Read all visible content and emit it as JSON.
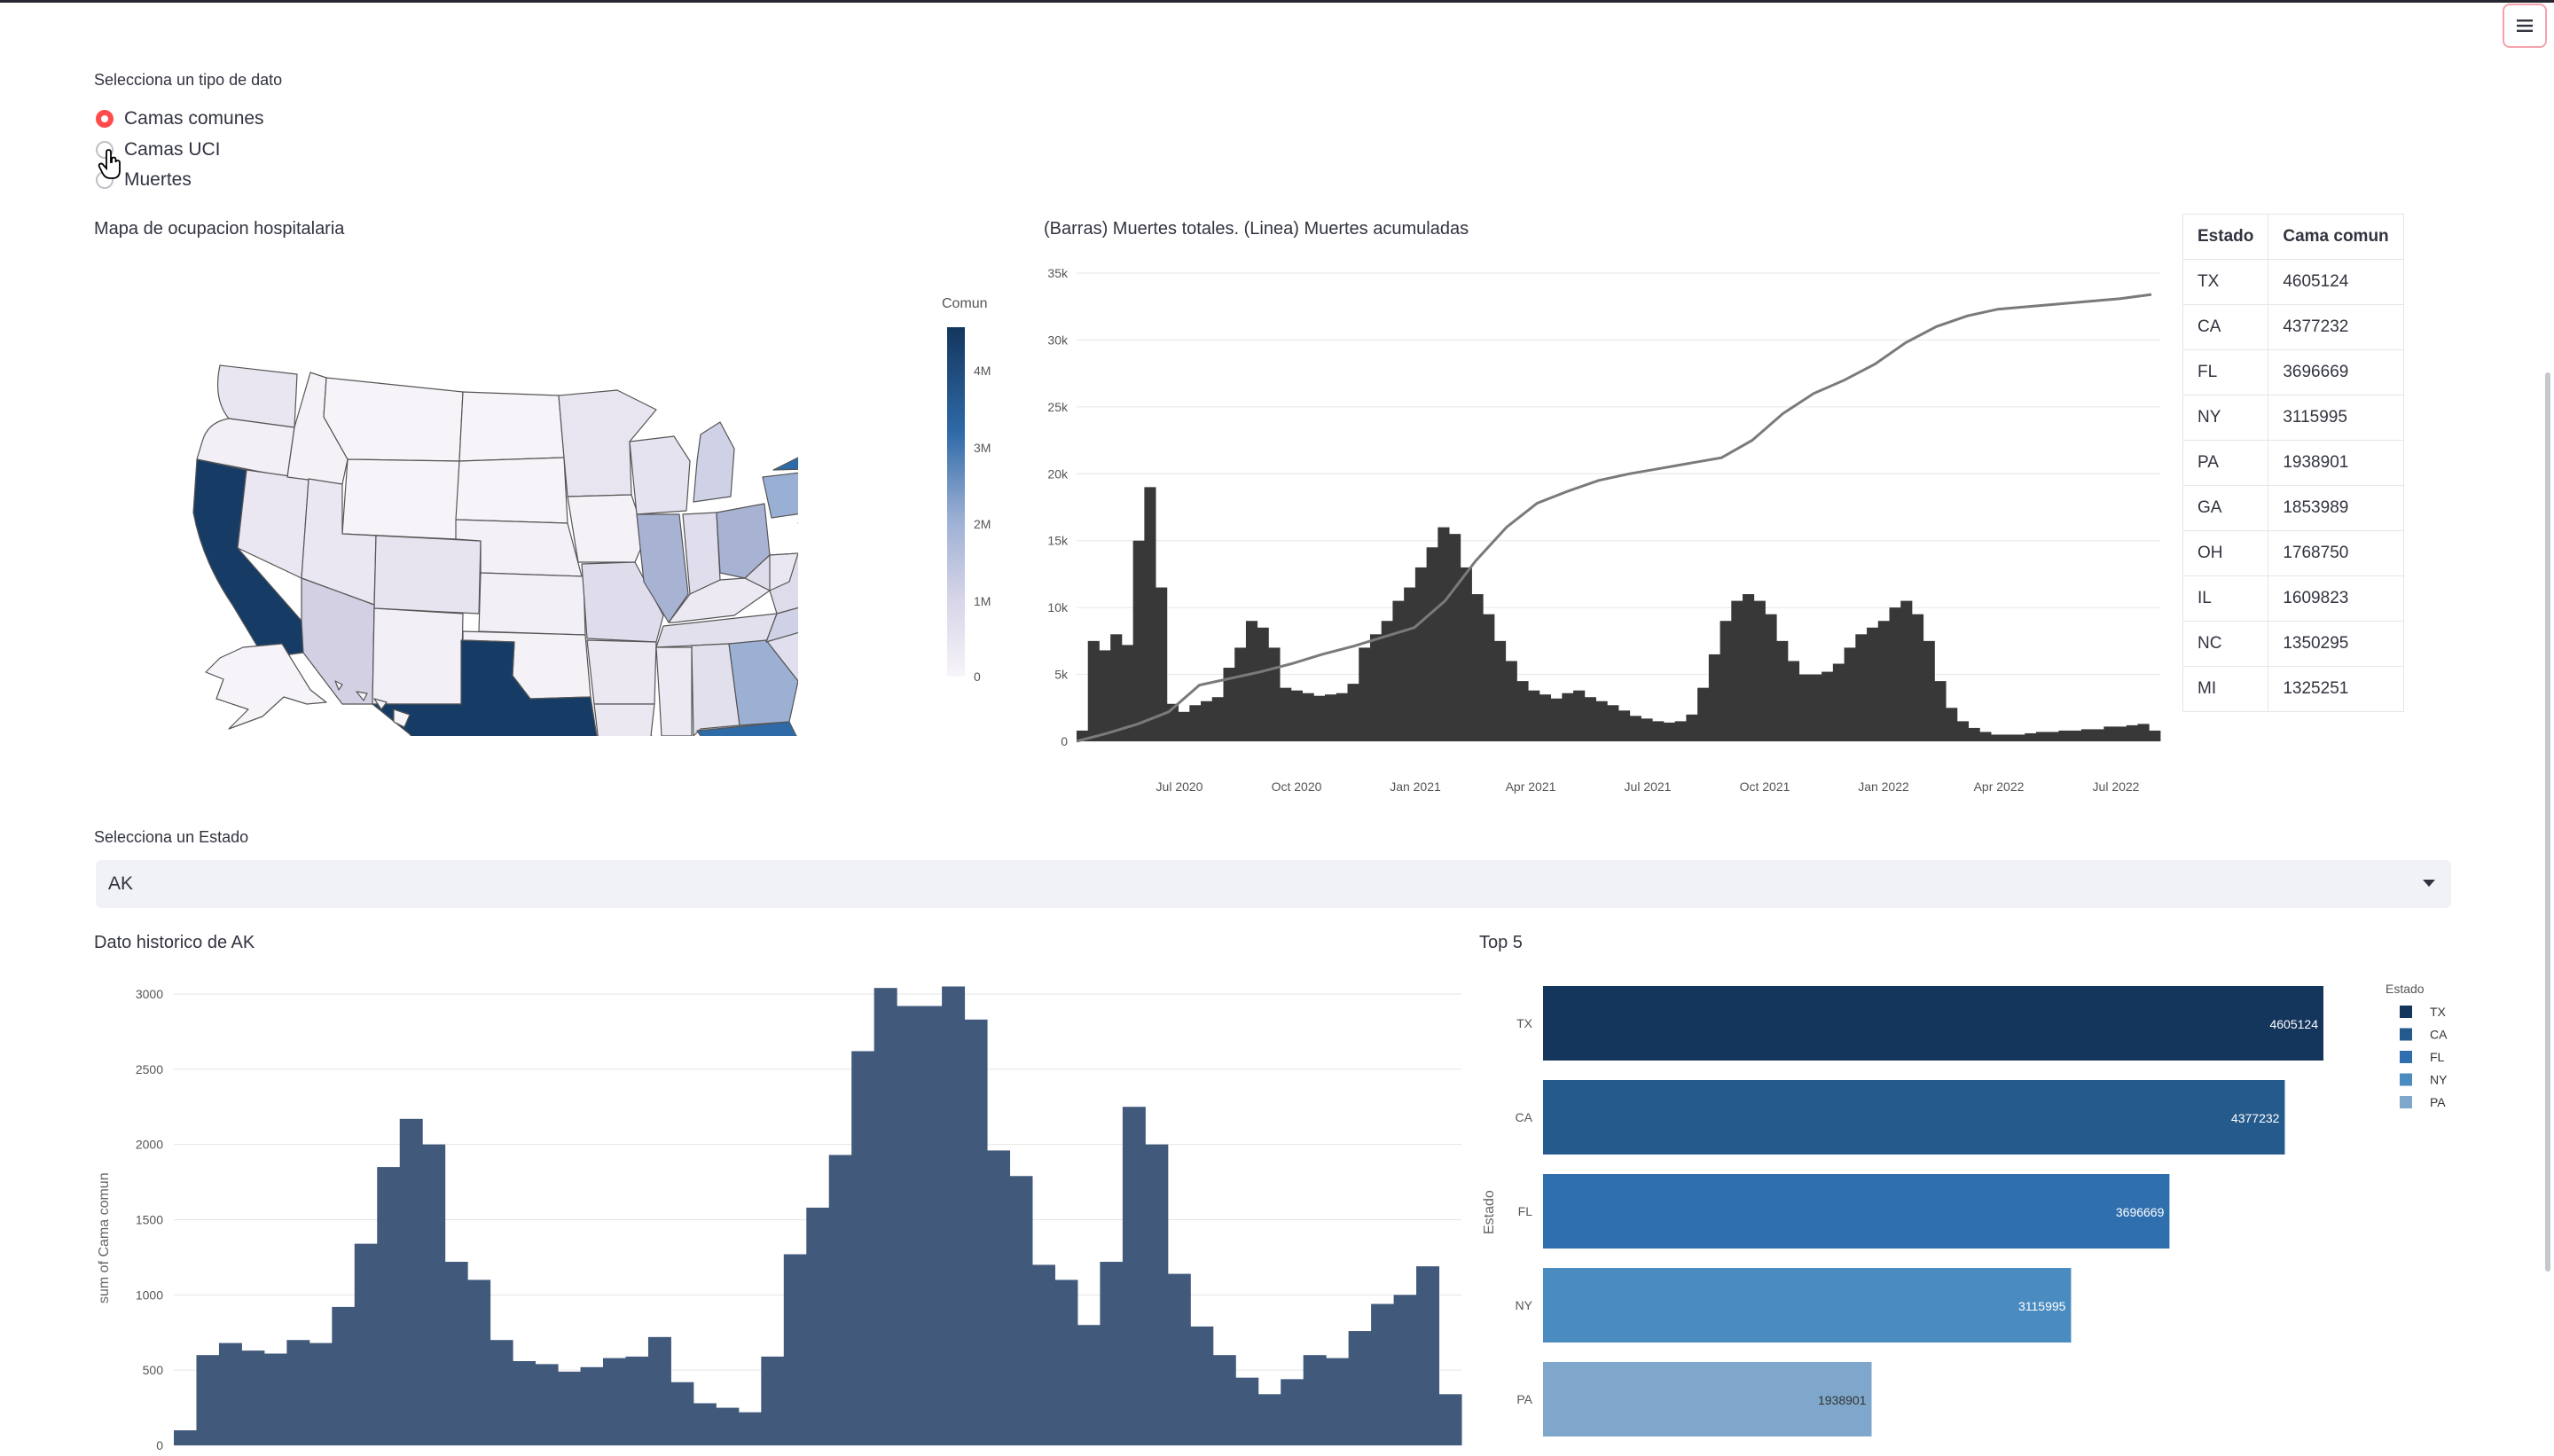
{
  "controls": {
    "data_type_label": "Selecciona un tipo de dato",
    "options": [
      {
        "label": "Camas comunes",
        "selected": true
      },
      {
        "label": "Camas UCI",
        "selected": false
      },
      {
        "label": "Muertes",
        "selected": false
      }
    ],
    "state_select_label": "Selecciona un Estado",
    "state_select_value": "AK"
  },
  "map": {
    "title": "Mapa de ocupacion hospitalaria",
    "colorbar_title": "Comun",
    "colorbar_ticks": [
      "4M",
      "3M",
      "2M",
      "1M",
      "0"
    ],
    "colors": {
      "low": "#f7f4f9",
      "high": "#14365d"
    }
  },
  "deaths_chart": {
    "title": "(Barras) Muertes totales. (Linea) Muertes acumuladas",
    "chart_data": {
      "type": "bar",
      "y_ticks": [
        "0",
        "5k",
        "10k",
        "15k",
        "20k",
        "25k",
        "30k",
        "35k"
      ],
      "x_ticks": [
        "Jul 2020",
        "Oct 2020",
        "Jan 2021",
        "Apr 2021",
        "Jul 2021",
        "Oct 2021",
        "Jan 2022",
        "Apr 2022",
        "Jul 2022"
      ],
      "ylim": [
        0,
        35000
      ],
      "bar_values": [
        800,
        7500,
        6800,
        8000,
        7200,
        15000,
        19000,
        11500,
        2800,
        2200,
        2700,
        3000,
        3300,
        5500,
        7000,
        9000,
        8500,
        7000,
        4000,
        3800,
        3600,
        3400,
        3500,
        3600,
        4300,
        7000,
        8000,
        9000,
        10500,
        11500,
        13000,
        14500,
        16000,
        15500,
        13000,
        11000,
        9500,
        7500,
        6000,
        4500,
        3800,
        3500,
        3200,
        3600,
        3800,
        3300,
        3000,
        2700,
        2300,
        1900,
        1700,
        1500,
        1400,
        1500,
        2000,
        4000,
        6500,
        9000,
        10500,
        11000,
        10500,
        9500,
        7500,
        6000,
        5000,
        5000,
        5200,
        5800,
        7000,
        8000,
        8500,
        9000,
        10000,
        10500,
        9500,
        7500,
        4500,
        2500,
        1500,
        1000,
        700,
        500,
        500,
        500,
        600,
        700,
        700,
        800,
        800,
        900,
        900,
        1100,
        1100,
        1200,
        1300,
        800
      ],
      "line_values": [
        0,
        600,
        1300,
        2200,
        4200,
        4700,
        5200,
        5800,
        6500,
        7100,
        7800,
        8500,
        10500,
        13500,
        16000,
        17800,
        18700,
        19500,
        20000,
        20400,
        20800,
        21200,
        22500,
        24500,
        26000,
        27000,
        28200,
        29800,
        31000,
        31800,
        32300,
        32500,
        32700,
        32900,
        33100,
        33400
      ],
      "bar_color": "#383838",
      "line_color": "#7a7a7a"
    }
  },
  "table": {
    "headers": [
      "Estado",
      "Cama comun"
    ],
    "rows": [
      [
        "TX",
        "4605124"
      ],
      [
        "CA",
        "4377232"
      ],
      [
        "FL",
        "3696669"
      ],
      [
        "NY",
        "3115995"
      ],
      [
        "PA",
        "1938901"
      ],
      [
        "GA",
        "1853989"
      ],
      [
        "OH",
        "1768750"
      ],
      [
        "IL",
        "1609823"
      ],
      [
        "NC",
        "1350295"
      ],
      [
        "MI",
        "1325251"
      ]
    ]
  },
  "history_chart": {
    "title": "Dato historico de AK",
    "chart_data": {
      "type": "bar",
      "ylabel": "sum of Cama comun",
      "y_ticks": [
        "0",
        "500",
        "1000",
        "1500",
        "2000",
        "2500",
        "3000"
      ],
      "ylim": [
        0,
        3100
      ],
      "values": [
        100,
        600,
        680,
        630,
        610,
        700,
        680,
        920,
        1340,
        1850,
        2170,
        2000,
        1220,
        1100,
        700,
        560,
        540,
        490,
        520,
        580,
        590,
        720,
        420,
        280,
        250,
        220,
        590,
        1270,
        1580,
        1930,
        2620,
        3040,
        2920,
        2920,
        3050,
        2830,
        1960,
        1790,
        1200,
        1100,
        800,
        1220,
        2250,
        2000,
        1140,
        790,
        600,
        450,
        340,
        440,
        600,
        580,
        760,
        940,
        1000,
        1190,
        340
      ],
      "bar_color": "#41597a"
    }
  },
  "top5_chart": {
    "title": "Top 5",
    "chart_data": {
      "type": "bar",
      "orientation": "horizontal",
      "ylabel": "Estado",
      "legend_title": "Estado",
      "categories": [
        "TX",
        "CA",
        "FL",
        "NY",
        "PA"
      ],
      "values": [
        4605124,
        4377232,
        3696669,
        3115995,
        1938901
      ],
      "labels": [
        "4605124",
        "4377232",
        "3696669",
        "3115995",
        "1938901"
      ],
      "colors": [
        "#14365d",
        "#255a8c",
        "#306fae",
        "#4a8bc0",
        "#7fa7cc"
      ]
    }
  }
}
